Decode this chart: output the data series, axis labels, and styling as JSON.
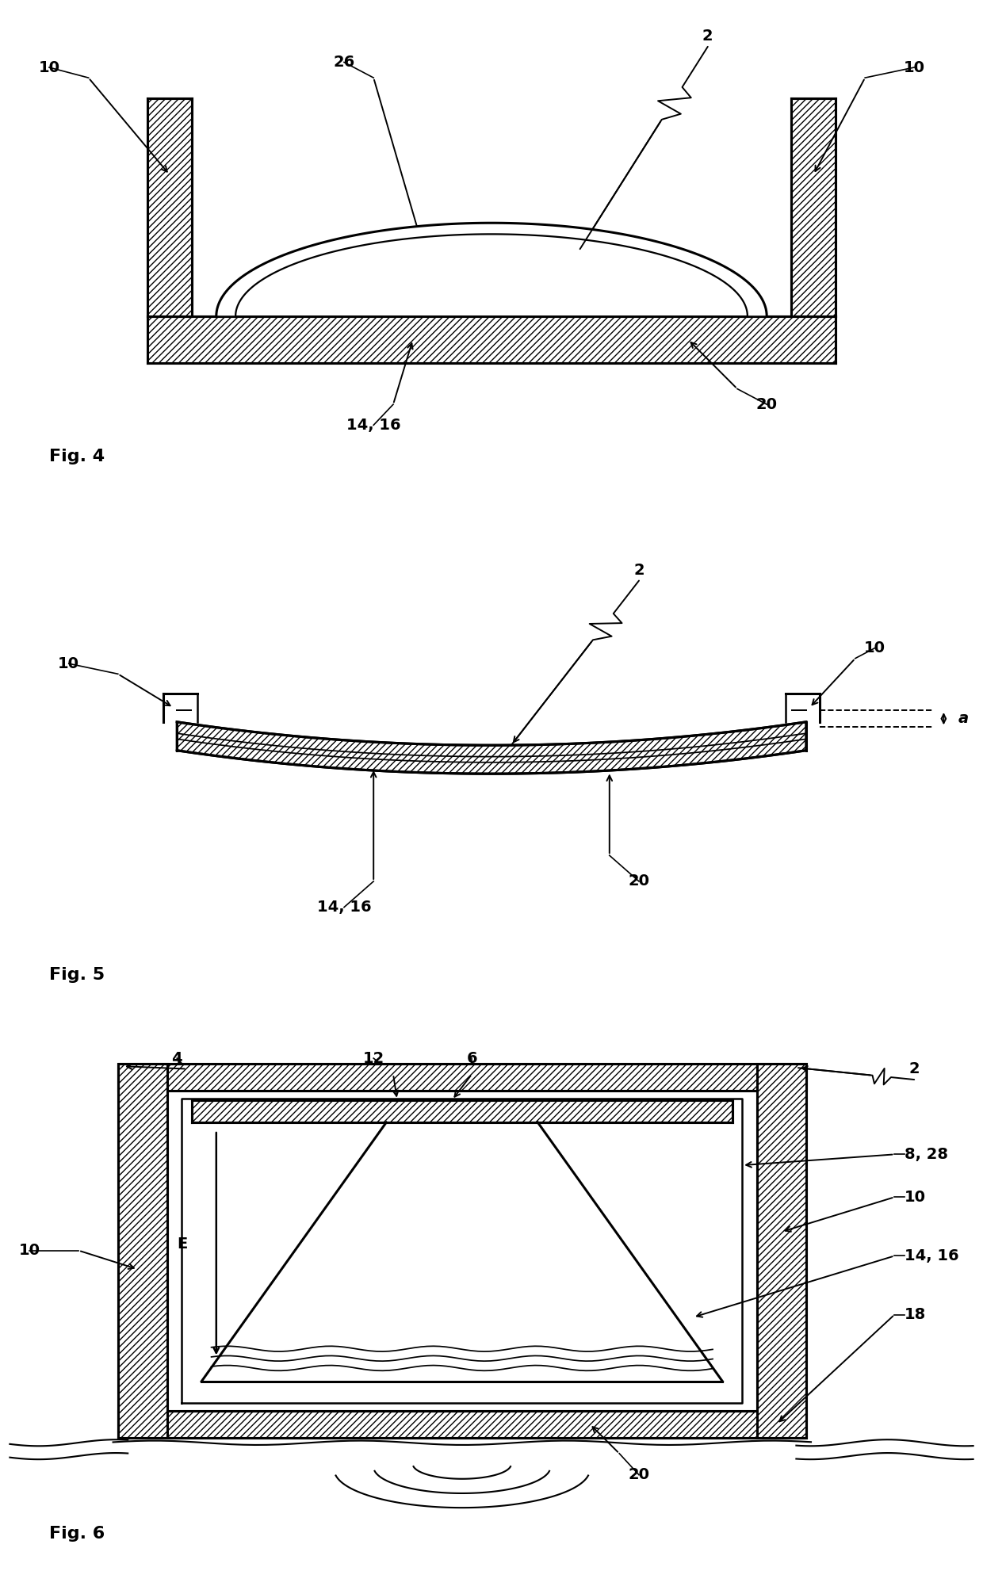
{
  "bg_color": "#ffffff",
  "line_color": "#000000",
  "lw": 1.8,
  "lw_thick": 2.2,
  "fs_label": 14,
  "fs_fig": 16,
  "fig4_title": "Fig. 4",
  "fig5_title": "Fig. 5",
  "fig6_title": "Fig. 6"
}
